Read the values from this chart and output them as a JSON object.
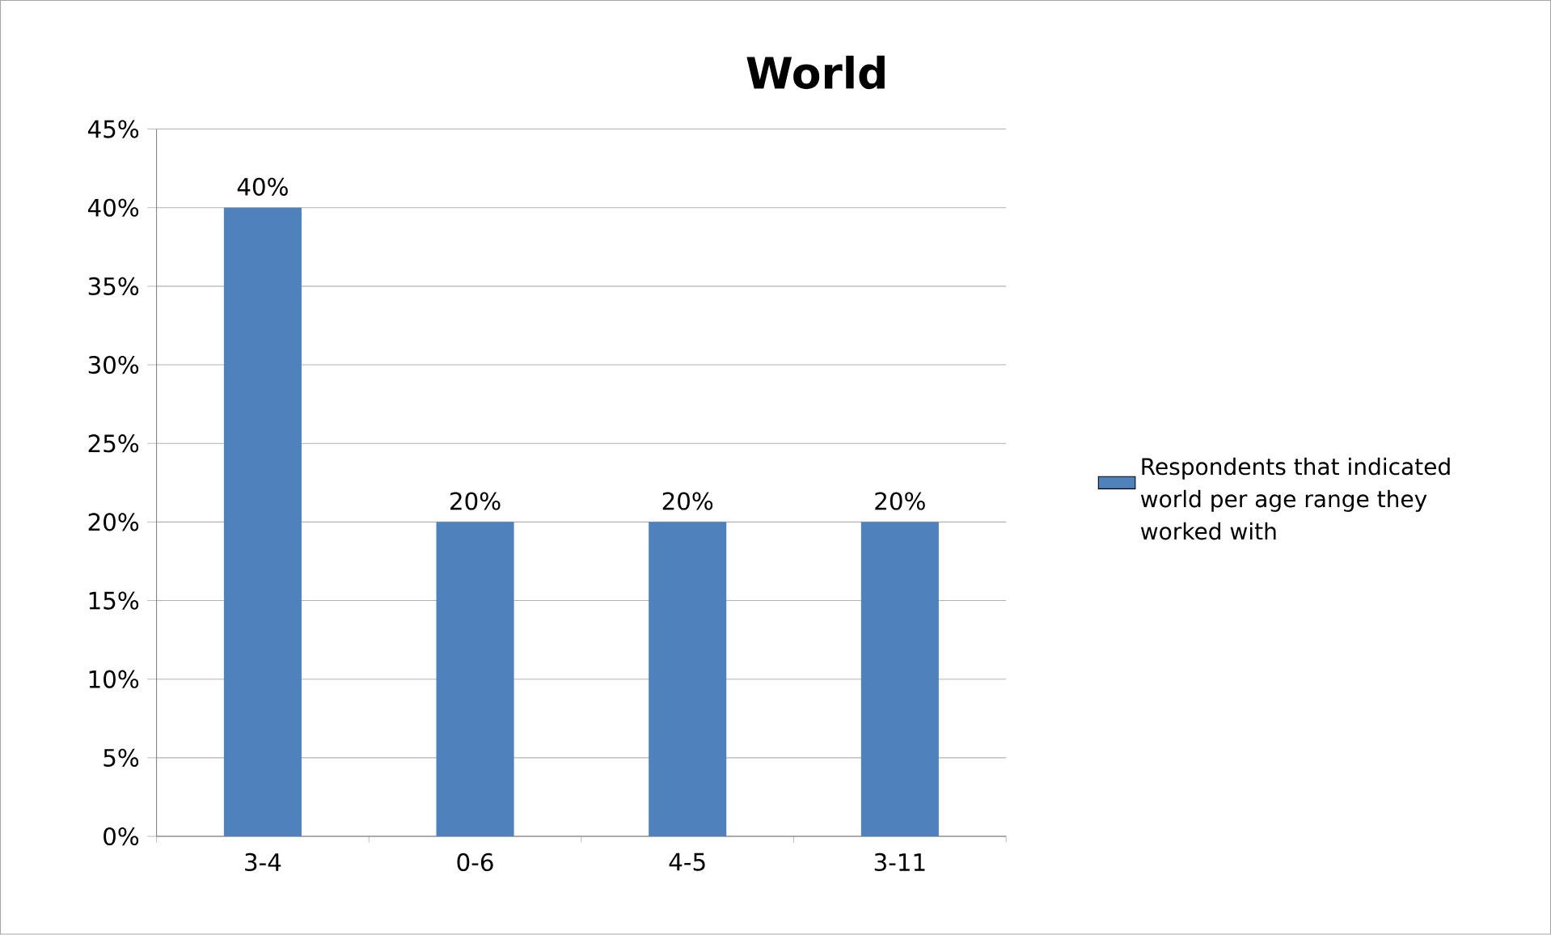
{
  "chart_data": {
    "type": "bar",
    "title": "World",
    "categories": [
      "3-4",
      "0-6",
      "4-5",
      "3-11"
    ],
    "series": [
      {
        "name": "Respondents that indicated world per age range they worked with",
        "color": "#4f81bd",
        "values": [
          40,
          20,
          20,
          20
        ],
        "value_labels": [
          "40%",
          "20%",
          "20%",
          "20%"
        ]
      }
    ],
    "ylim": [
      0,
      45
    ],
    "yticks": [
      {
        "value": 0,
        "label": "0%"
      },
      {
        "value": 5,
        "label": "5%"
      },
      {
        "value": 10,
        "label": "10%"
      },
      {
        "value": 15,
        "label": "15%"
      },
      {
        "value": 20,
        "label": "20%"
      },
      {
        "value": 25,
        "label": "25%"
      },
      {
        "value": 30,
        "label": "30%"
      },
      {
        "value": 35,
        "label": "35%"
      },
      {
        "value": 40,
        "label": "40%"
      },
      {
        "value": 45,
        "label": "45%"
      }
    ],
    "grid": "y",
    "legend": "right"
  }
}
